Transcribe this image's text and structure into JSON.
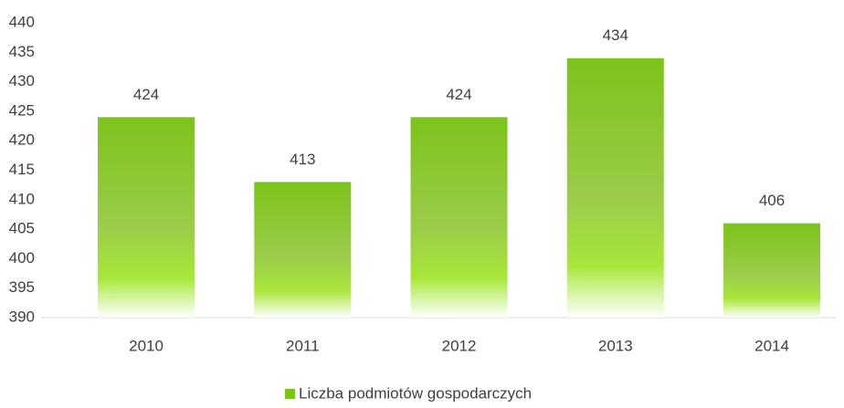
{
  "chart_data": {
    "type": "bar",
    "categories": [
      "2010",
      "2011",
      "2012",
      "2013",
      "2014"
    ],
    "series": [
      {
        "name": "Liczba podmiotów gospodarczych",
        "color": "#7cc31b",
        "values": [
          424,
          413,
          424,
          434,
          406
        ]
      }
    ],
    "ylim": [
      390,
      440
    ],
    "yticks": [
      390,
      395,
      400,
      405,
      410,
      415,
      420,
      425,
      430,
      435,
      440
    ],
    "grid": false,
    "legend": "bottom"
  }
}
